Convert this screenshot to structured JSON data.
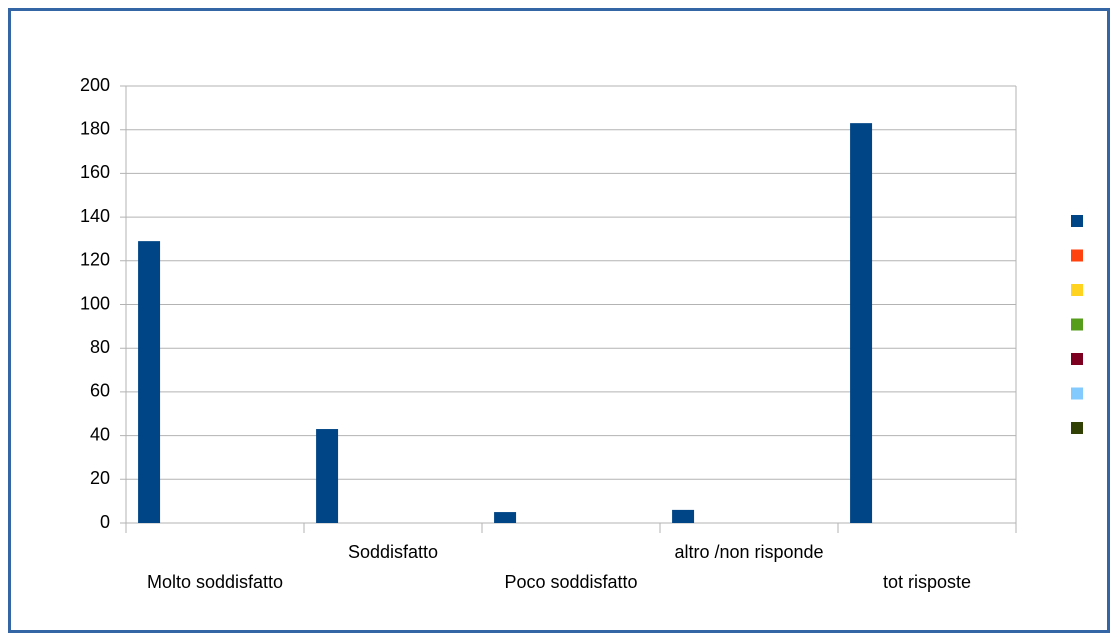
{
  "chart_data": {
    "type": "bar",
    "categories": [
      "Molto soddisfatto",
      "Soddisfatto",
      "Poco soddisfatto",
      "altro /non risponde",
      "tot risposte"
    ],
    "series": [
      {
        "color": "#004586",
        "values": [
          129,
          43,
          5,
          6,
          183
        ]
      },
      {
        "color": "#ff420e",
        "values": [
          null,
          null,
          null,
          null,
          null
        ]
      },
      {
        "color": "#ffd320",
        "values": [
          null,
          null,
          null,
          null,
          null
        ]
      },
      {
        "color": "#579d1c",
        "values": [
          null,
          null,
          null,
          null,
          null
        ]
      },
      {
        "color": "#7e0021",
        "values": [
          null,
          null,
          null,
          null,
          null
        ]
      },
      {
        "color": "#83caff",
        "values": [
          null,
          null,
          null,
          null,
          null
        ]
      },
      {
        "color": "#314004",
        "values": [
          null,
          null,
          null,
          null,
          null
        ]
      }
    ],
    "ylim": [
      0,
      200
    ],
    "yticks": [
      0,
      20,
      40,
      60,
      80,
      100,
      120,
      140,
      160,
      180,
      200
    ],
    "grid": true,
    "legend": "right"
  }
}
